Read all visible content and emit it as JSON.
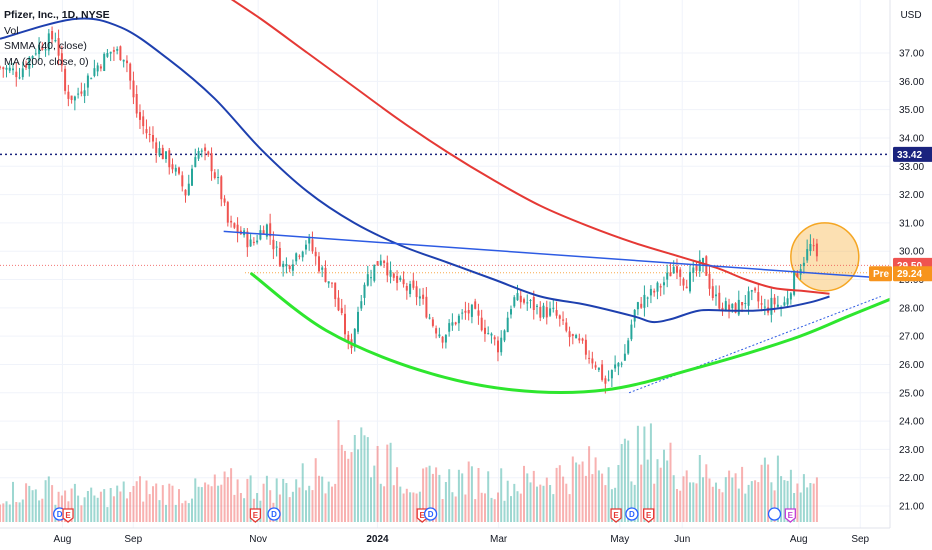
{
  "legend": {
    "symbol": "Pfizer, Inc., 1D, NYSE",
    "volume": "Vol",
    "smma": "SMMA (40, close)",
    "ma": "MA (200, close, 0)"
  },
  "currency_label": "USD",
  "colors": {
    "up": "#26a69a",
    "down": "#ef5350",
    "smma": "#1e40af",
    "ma": "#e53935",
    "trend_line": "#2d5be3",
    "cup_curve": "#2ee62e",
    "highlight_circle": "#f5a623",
    "pre_badge": "#f7941d",
    "price_badge": "#ef5350",
    "level_badge": "#1a237e"
  },
  "chart_data": {
    "type": "candlestick",
    "title": "Pfizer, Inc., 1D, NYSE",
    "ylim": [
      20.5,
      39.0
    ],
    "y_ticks": [
      "21.00",
      "22.00",
      "23.00",
      "24.00",
      "25.00",
      "26.00",
      "27.00",
      "28.00",
      "29.00",
      "30.00",
      "31.00",
      "32.00",
      "33.00",
      "34.00",
      "35.00",
      "36.00",
      "37.00"
    ],
    "x_ticks": [
      {
        "label": "Aug",
        "t": 0.067
      },
      {
        "label": "Sep",
        "t": 0.143
      },
      {
        "label": "Nov",
        "t": 0.277
      },
      {
        "label": "2024",
        "t": 0.405
      },
      {
        "label": "Mar",
        "t": 0.535
      },
      {
        "label": "May",
        "t": 0.665
      },
      {
        "label": "Jun",
        "t": 0.732
      },
      {
        "label": "Aug",
        "t": 0.857
      },
      {
        "label": "Sep",
        "t": 0.923
      }
    ],
    "price_path": [
      [
        0.0,
        36.5
      ],
      [
        0.02,
        36.3
      ],
      [
        0.04,
        37.2
      ],
      [
        0.06,
        37.6
      ],
      [
        0.07,
        35.6
      ],
      [
        0.08,
        35.4
      ],
      [
        0.1,
        36.4
      ],
      [
        0.12,
        37.1
      ],
      [
        0.135,
        36.9
      ],
      [
        0.145,
        35.0
      ],
      [
        0.155,
        34.3
      ],
      [
        0.17,
        33.6
      ],
      [
        0.185,
        33.0
      ],
      [
        0.2,
        32.0
      ],
      [
        0.21,
        33.6
      ],
      [
        0.225,
        33.2
      ],
      [
        0.235,
        32.3
      ],
      [
        0.245,
        30.9
      ],
      [
        0.26,
        30.6
      ],
      [
        0.27,
        30.2
      ],
      [
        0.285,
        31.0
      ],
      [
        0.295,
        30.1
      ],
      [
        0.305,
        29.4
      ],
      [
        0.315,
        29.8
      ],
      [
        0.33,
        30.4
      ],
      [
        0.345,
        29.3
      ],
      [
        0.355,
        28.9
      ],
      [
        0.36,
        28.3
      ],
      [
        0.37,
        27.2
      ],
      [
        0.375,
        26.4
      ],
      [
        0.39,
        28.9
      ],
      [
        0.405,
        29.6
      ],
      [
        0.41,
        29.9
      ],
      [
        0.42,
        29.0
      ],
      [
        0.435,
        28.7
      ],
      [
        0.45,
        28.4
      ],
      [
        0.465,
        27.4
      ],
      [
        0.475,
        27.0
      ],
      [
        0.49,
        27.6
      ],
      [
        0.505,
        27.9
      ],
      [
        0.52,
        27.3
      ],
      [
        0.535,
        26.6
      ],
      [
        0.55,
        28.3
      ],
      [
        0.565,
        28.2
      ],
      [
        0.58,
        27.9
      ],
      [
        0.595,
        27.8
      ],
      [
        0.61,
        27.0
      ],
      [
        0.625,
        26.6
      ],
      [
        0.64,
        26.0
      ],
      [
        0.65,
        25.3
      ],
      [
        0.66,
        25.9
      ],
      [
        0.67,
        26.3
      ],
      [
        0.68,
        27.8
      ],
      [
        0.69,
        28.3
      ],
      [
        0.7,
        28.5
      ],
      [
        0.715,
        29.0
      ],
      [
        0.725,
        29.6
      ],
      [
        0.735,
        28.9
      ],
      [
        0.745,
        29.2
      ],
      [
        0.755,
        29.6
      ],
      [
        0.765,
        28.4
      ],
      [
        0.775,
        28.1
      ],
      [
        0.785,
        27.9
      ],
      [
        0.8,
        28.3
      ],
      [
        0.81,
        28.4
      ],
      [
        0.82,
        27.9
      ],
      [
        0.83,
        28.2
      ],
      [
        0.84,
        28.0
      ],
      [
        0.85,
        28.9
      ],
      [
        0.86,
        29.6
      ],
      [
        0.87,
        30.2
      ],
      [
        0.875,
        29.8
      ],
      [
        0.88,
        29.5
      ]
    ],
    "smma_40": [
      [
        0.0,
        37.5
      ],
      [
        0.08,
        38.2
      ],
      [
        0.13,
        37.9
      ],
      [
        0.18,
        36.8
      ],
      [
        0.23,
        35.4
      ],
      [
        0.28,
        33.6
      ],
      [
        0.33,
        32.1
      ],
      [
        0.38,
        31.0
      ],
      [
        0.43,
        30.2
      ],
      [
        0.48,
        29.6
      ],
      [
        0.53,
        29.0
      ],
      [
        0.58,
        28.4
      ],
      [
        0.63,
        28.1
      ],
      [
        0.68,
        27.7
      ],
      [
        0.7,
        27.5
      ],
      [
        0.72,
        27.6
      ],
      [
        0.75,
        27.9
      ],
      [
        0.78,
        27.9
      ],
      [
        0.81,
        27.9
      ],
      [
        0.84,
        28.0
      ],
      [
        0.87,
        28.2
      ],
      [
        0.89,
        28.4
      ]
    ],
    "ma_200": [
      [
        0.23,
        39.3
      ],
      [
        0.28,
        38.2
      ],
      [
        0.33,
        37.0
      ],
      [
        0.38,
        35.8
      ],
      [
        0.43,
        34.6
      ],
      [
        0.48,
        33.5
      ],
      [
        0.53,
        32.5
      ],
      [
        0.58,
        31.6
      ],
      [
        0.63,
        30.9
      ],
      [
        0.68,
        30.3
      ],
      [
        0.73,
        29.8
      ],
      [
        0.77,
        29.4
      ],
      [
        0.8,
        29.0
      ],
      [
        0.83,
        28.7
      ],
      [
        0.86,
        28.6
      ],
      [
        0.89,
        28.5
      ]
    ],
    "neckline": [
      [
        0.24,
        30.7
      ],
      [
        0.97,
        29.0
      ]
    ],
    "cup_curve": [
      [
        0.27,
        29.2
      ],
      [
        0.35,
        27.2
      ],
      [
        0.45,
        25.8
      ],
      [
        0.55,
        25.1
      ],
      [
        0.65,
        25.1
      ],
      [
        0.75,
        25.9
      ],
      [
        0.85,
        26.9
      ],
      [
        0.91,
        27.7
      ],
      [
        0.955,
        28.3
      ]
    ],
    "support_line": [
      [
        0.675,
        25.0
      ],
      [
        0.945,
        28.4
      ]
    ],
    "highlight_circle": {
      "t": 0.885,
      "price": 29.8,
      "r_price": 1.2
    },
    "level_33": 33.42,
    "last_price": 29.5,
    "pre_price": 29.24,
    "volume_profile": [
      [
        0.0,
        0.3
      ],
      [
        0.05,
        0.35
      ],
      [
        0.1,
        0.25
      ],
      [
        0.15,
        0.35
      ],
      [
        0.2,
        0.3
      ],
      [
        0.25,
        0.4
      ],
      [
        0.3,
        0.35
      ],
      [
        0.35,
        0.55
      ],
      [
        0.38,
        1.0
      ],
      [
        0.4,
        0.7
      ],
      [
        0.45,
        0.4
      ],
      [
        0.5,
        0.45
      ],
      [
        0.55,
        0.4
      ],
      [
        0.6,
        0.5
      ],
      [
        0.65,
        0.6
      ],
      [
        0.7,
        0.75
      ],
      [
        0.73,
        0.55
      ],
      [
        0.76,
        0.5
      ],
      [
        0.8,
        0.45
      ],
      [
        0.85,
        0.5
      ],
      [
        0.88,
        0.35
      ]
    ],
    "events": [
      {
        "t": 0.064,
        "label": "D",
        "kind": "D"
      },
      {
        "t": 0.073,
        "label": "E",
        "kind": "E"
      },
      {
        "t": 0.274,
        "label": "E",
        "kind": "E"
      },
      {
        "t": 0.294,
        "label": "D",
        "kind": "D"
      },
      {
        "t": 0.453,
        "label": "E",
        "kind": "E"
      },
      {
        "t": 0.462,
        "label": "D",
        "kind": "D"
      },
      {
        "t": 0.661,
        "label": "E",
        "kind": "E"
      },
      {
        "t": 0.678,
        "label": "D",
        "kind": "D"
      },
      {
        "t": 0.696,
        "label": "E",
        "kind": "E"
      },
      {
        "t": 0.831,
        "label": "",
        "kind": "D"
      },
      {
        "t": 0.848,
        "label": "E",
        "kind": "E2"
      }
    ],
    "labels": {
      "level": "33.42",
      "last": "29.50",
      "pre_tag": "Pre",
      "pre": "29.24"
    }
  }
}
